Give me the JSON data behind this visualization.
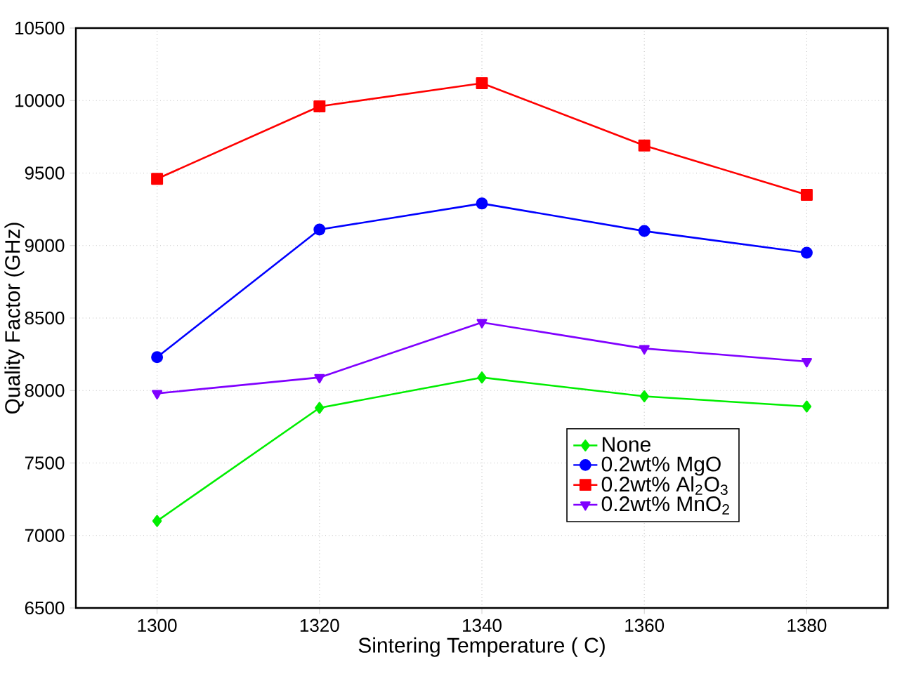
{
  "chart_data": {
    "type": "line",
    "xlabel": "Sintering Temperature ( C)",
    "ylabel": "Quality Factor (GHz)",
    "x": [
      1300,
      1320,
      1340,
      1360,
      1380
    ],
    "series": [
      {
        "name": "None",
        "color": "#00ee00",
        "marker": "diamond",
        "values": [
          7100,
          7880,
          8090,
          7960,
          7890
        ]
      },
      {
        "name": "0.2wt% MgO",
        "color": "#0000ff",
        "marker": "circle",
        "values": [
          8230,
          9110,
          9290,
          9100,
          8950
        ]
      },
      {
        "name": "0.2wt% Al$_{2}$O$_{3}$",
        "color": "#ff0000",
        "marker": "square",
        "values": [
          9460,
          9960,
          10120,
          9690,
          9350
        ]
      },
      {
        "name": "0.2wt% MnO$_{2}$",
        "color": "#8000ff",
        "marker": "triangle",
        "values": [
          7980,
          8090,
          8470,
          8290,
          8200
        ]
      }
    ],
    "xlim": [
      1290,
      1390
    ],
    "xticks": [
      1300,
      1320,
      1340,
      1360,
      1380
    ],
    "ylim": [
      6500,
      10500
    ],
    "yticks": [
      6500,
      7000,
      7500,
      8000,
      8500,
      9000,
      9500,
      10000,
      10500
    ],
    "grid": true,
    "legend": "bottom right",
    "line_style": "solid"
  }
}
